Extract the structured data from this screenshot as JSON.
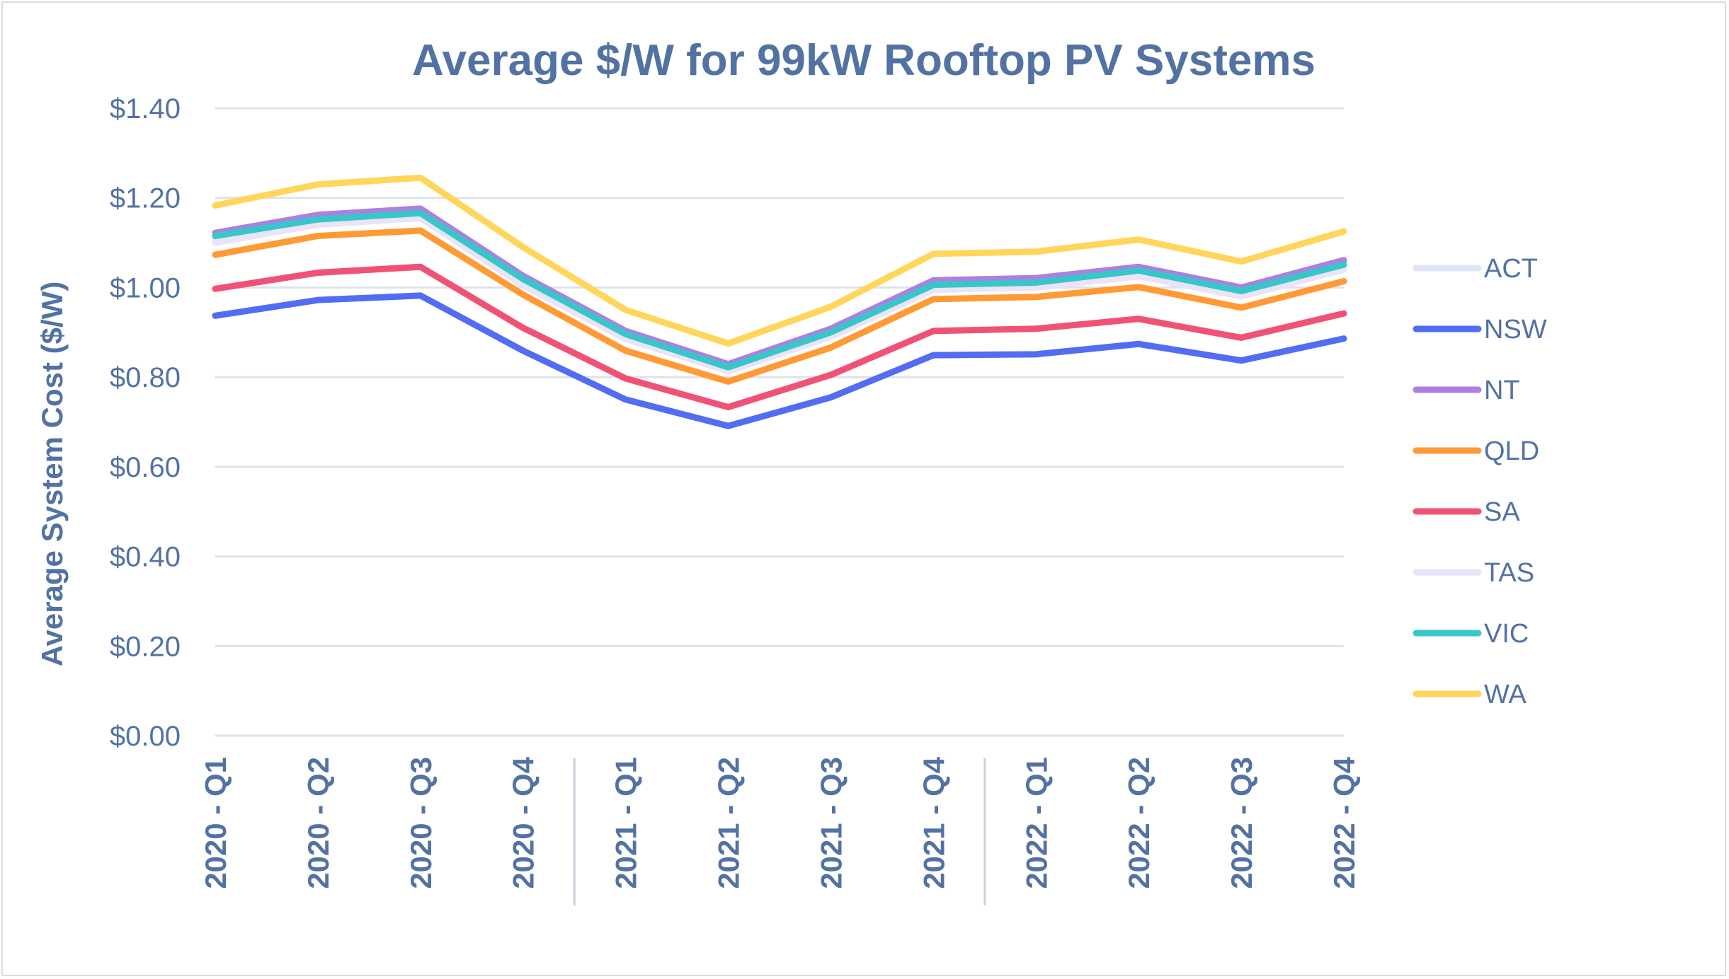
{
  "chart_data": {
    "type": "line",
    "title": "Average $/W for 99kW Rooftop PV Systems",
    "xlabel": "",
    "ylabel": "Average System Cost ($/W)",
    "ylim": [
      0,
      1.4
    ],
    "yticks": [
      "$0.00",
      "$0.20",
      "$0.40",
      "$0.60",
      "$0.80",
      "$1.00",
      "$1.20",
      "$1.40"
    ],
    "grid": true,
    "legend": "right",
    "categories": [
      "2020 - Q1",
      "2020 - Q2",
      "2020 - Q3",
      "2020 - Q4",
      "2021 - Q1",
      "2021 - Q2",
      "2021 - Q3",
      "2021 - Q4",
      "2022 - Q1",
      "2022 - Q2",
      "2022 - Q3",
      "2022 - Q4"
    ],
    "series": [
      {
        "name": "ACT",
        "color": "#dfe3f7",
        "values": [
          1.105,
          1.145,
          1.16,
          1.01,
          0.89,
          0.818,
          0.895,
          1.0,
          1.005,
          1.03,
          0.985,
          1.045
        ]
      },
      {
        "name": "NSW",
        "color": "#526cf2",
        "values": [
          0.937,
          0.972,
          0.982,
          0.859,
          0.75,
          0.691,
          0.755,
          0.849,
          0.851,
          0.874,
          0.837,
          0.886
        ]
      },
      {
        "name": "NT",
        "color": "#ad7fe0",
        "values": [
          1.122,
          1.162,
          1.176,
          1.026,
          0.903,
          0.829,
          0.908,
          1.016,
          1.021,
          1.046,
          1.0,
          1.061
        ]
      },
      {
        "name": "QLD",
        "color": "#ff9a35",
        "values": [
          1.073,
          1.115,
          1.127,
          0.984,
          0.859,
          0.79,
          0.866,
          0.974,
          0.979,
          1.001,
          0.955,
          1.014
        ]
      },
      {
        "name": "SA",
        "color": "#f05276",
        "values": [
          0.997,
          1.033,
          1.046,
          0.91,
          0.797,
          0.733,
          0.805,
          0.903,
          0.908,
          0.93,
          0.888,
          0.942
        ]
      },
      {
        "name": "TAS",
        "color": "#ebe3f7",
        "values": [
          1.1,
          1.14,
          1.155,
          1.005,
          0.885,
          0.813,
          0.89,
          0.995,
          1.0,
          1.025,
          0.98,
          1.04
        ]
      },
      {
        "name": "VIC",
        "color": "#38c6c9",
        "values": [
          1.115,
          1.152,
          1.166,
          1.019,
          0.896,
          0.822,
          0.9,
          1.006,
          1.011,
          1.038,
          0.992,
          1.051
        ]
      },
      {
        "name": "WA",
        "color": "#ffd65a",
        "values": [
          1.183,
          1.23,
          1.245,
          1.09,
          0.95,
          0.875,
          0.957,
          1.075,
          1.08,
          1.107,
          1.058,
          1.125
        ]
      }
    ]
  }
}
